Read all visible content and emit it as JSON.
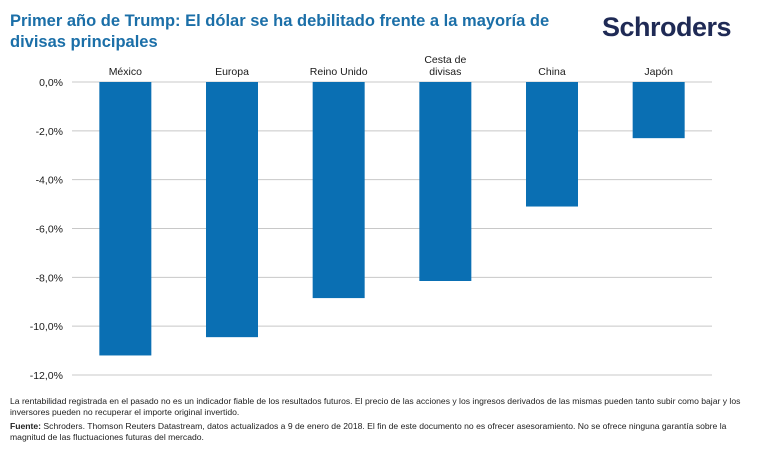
{
  "title": "Primer año de Trump: El dólar se ha debilitado frente a la mayoría de divisas principales",
  "logo": "Schroders",
  "colors": {
    "bar": "#0a6fb3",
    "title": "#1b6fa8",
    "logo": "#1f2a55",
    "grid": "#c8c8c8"
  },
  "chart_data": {
    "type": "bar",
    "title": "Primer año de Trump: El dólar se ha debilitado frente a la mayoría de divisas principales",
    "categories": [
      "México",
      "Europa",
      "Reino Unido",
      "Cesta de divisas",
      "China",
      "Japón"
    ],
    "category_labels": [
      [
        "México"
      ],
      [
        "Europa"
      ],
      [
        "Reino Unido"
      ],
      [
        "Cesta de",
        "divisas"
      ],
      [
        "China"
      ],
      [
        "Japón"
      ]
    ],
    "values": [
      -11.2,
      -10.45,
      -8.85,
      -8.15,
      -5.1,
      -2.3
    ],
    "yticks": [
      "0,0%",
      "-2,0%",
      "-4,0%",
      "-6,0%",
      "-8,0%",
      "-10,0%",
      "-12,0%"
    ],
    "ytick_values": [
      0,
      -2,
      -4,
      -6,
      -8,
      -10,
      -12
    ],
    "ylim": [
      -12,
      0
    ],
    "xlabel": "",
    "ylabel": "",
    "grid": true,
    "legend": "none"
  },
  "notes": {
    "disclaimer": "La rentabilidad registrada en el pasado no es un indicador fiable de los resultados futuros. El precio de las acciones y los ingresos derivados de las mismas pueden tanto subir como bajar y los inversores pueden no recuperar el importe original invertido.",
    "source_label": "Fuente:",
    "source_text": "Schroders. Thomson Reuters Datastream, datos actualizados a 9 de enero de 2018. El fin de este documento no es ofrecer asesoramiento. No se ofrece ninguna garantía sobre la magnitud de las fluctuaciones futuras del mercado."
  }
}
